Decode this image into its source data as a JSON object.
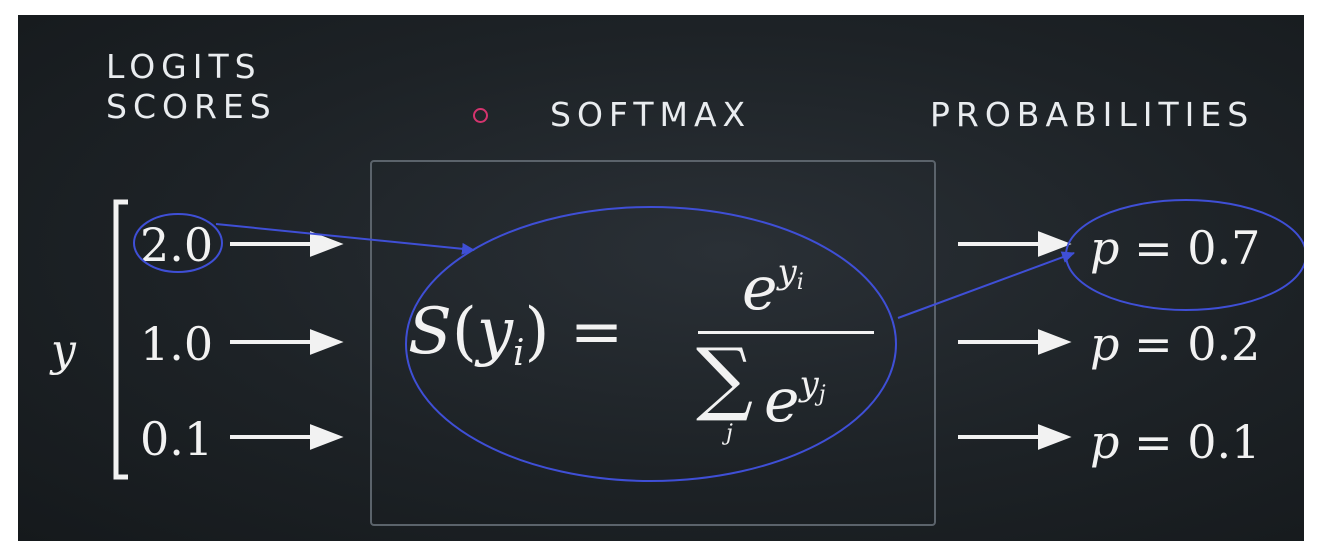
{
  "headers": {
    "logits": [
      "LOGITS",
      "SCORES"
    ],
    "softmax": "SOFTMAX",
    "probabilities": "PROBABILITIES"
  },
  "input_vector": {
    "symbol": "y",
    "values": [
      "2.0",
      "1.0",
      "0.1"
    ]
  },
  "formula": {
    "lhs_func": "S",
    "lhs_var": "y",
    "lhs_sub": "i",
    "equals": "=",
    "numerator_base": "e",
    "numerator_exp": "y",
    "numerator_exp_sub": "i",
    "sum_symbol": "∑",
    "sum_index": "j",
    "denominator_base": "e",
    "denominator_exp": "y",
    "denominator_exp_sub": "j"
  },
  "outputs": [
    {
      "var": "p",
      "eq": "=",
      "value": "0.7"
    },
    {
      "var": "p",
      "eq": "=",
      "value": "0.2"
    },
    {
      "var": "p",
      "eq": "=",
      "value": "0.1"
    }
  ],
  "colors": {
    "background": "#1d2226",
    "text": "#f2f2f2",
    "accent_dot": "#d4346e",
    "annotation": "#3f4fd6",
    "box_border": "#5b636b"
  }
}
